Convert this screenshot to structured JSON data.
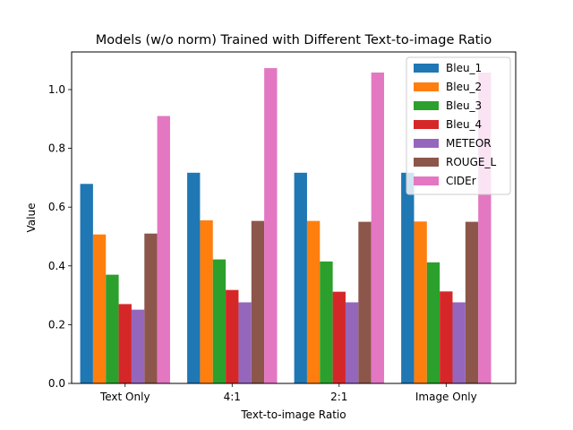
{
  "chart_data": {
    "type": "bar",
    "title": "Models (w/o norm) Trained with Different Text-to-image Ratio",
    "xlabel": "Text-to-image Ratio",
    "ylabel": "Value",
    "categories": [
      "Text Only",
      "4:1",
      "2:1",
      "Image Only"
    ],
    "ylim": [
      0,
      1.128
    ],
    "yticks": [
      0.0,
      0.2,
      0.4,
      0.6,
      0.8,
      1.0
    ],
    "ytick_labels": [
      "0.0",
      "0.2",
      "0.4",
      "0.6",
      "0.8",
      "1.0"
    ],
    "grid": false,
    "legend_position": "top-right",
    "series": [
      {
        "name": "Bleu_1",
        "color": "#1f77b4",
        "values": [
          0.679,
          0.717,
          0.717,
          0.717
        ]
      },
      {
        "name": "Bleu_2",
        "color": "#ff7f0e",
        "values": [
          0.507,
          0.555,
          0.553,
          0.551
        ]
      },
      {
        "name": "Bleu_3",
        "color": "#2ca02c",
        "values": [
          0.37,
          0.422,
          0.415,
          0.412
        ]
      },
      {
        "name": "Bleu_4",
        "color": "#d62728",
        "values": [
          0.27,
          0.318,
          0.312,
          0.313
        ]
      },
      {
        "name": "METEOR",
        "color": "#9467bd",
        "values": [
          0.251,
          0.276,
          0.276,
          0.276
        ]
      },
      {
        "name": "ROUGE_L",
        "color": "#8c564b",
        "values": [
          0.51,
          0.553,
          0.55,
          0.55
        ]
      },
      {
        "name": "CIDEr",
        "color": "#e377c2",
        "values": [
          0.91,
          1.073,
          1.058,
          1.058
        ]
      }
    ]
  }
}
